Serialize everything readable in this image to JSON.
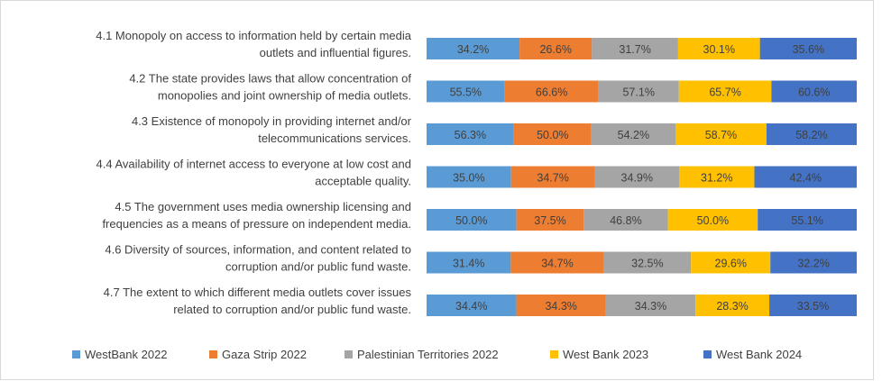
{
  "chart_data": {
    "type": "bar",
    "orientation": "horizontal",
    "stacked": true,
    "categories": [
      [
        "4.1 Monopoly on access to information held by certain media",
        "outlets and influential figures."
      ],
      [
        "4.2 The state provides laws that allow concentration of",
        "monopolies and joint ownership of media outlets."
      ],
      [
        "4.3 Existence of monopoly in providing internet and/or",
        "telecommunications services."
      ],
      [
        "4.4 Availability of internet access to everyone at low cost and",
        "acceptable quality."
      ],
      [
        "4.5 The government uses media ownership licensing and",
        "frequencies as a means of pressure on independent media."
      ],
      [
        "4.6 Diversity of sources, information, and content related to",
        "corruption and/or public fund waste."
      ],
      [
        "4.7 The extent to which different media outlets cover issues",
        "related to corruption and/or public fund waste."
      ]
    ],
    "series": [
      {
        "name": "WestBank 2022",
        "color": "#5b9bd5",
        "values": [
          34.2,
          55.5,
          56.3,
          35.0,
          50.0,
          31.4,
          34.4
        ],
        "labels": [
          "34.2%",
          "55.5%",
          "56.3%",
          "35.0%",
          "50.0%",
          "31.4%",
          "34.4%"
        ]
      },
      {
        "name": "Gaza Strip 2022",
        "color": "#ed7d31",
        "values": [
          26.6,
          66.6,
          50.0,
          34.7,
          37.5,
          34.7,
          34.3
        ],
        "labels": [
          "26.6%",
          "66.6%",
          "50.0%",
          "34.7%",
          "37.5%",
          "34.7%",
          "34.3%"
        ]
      },
      {
        "name": "Palestinian Territories 2022",
        "color": "#a5a5a5",
        "values": [
          31.7,
          57.1,
          54.2,
          34.9,
          46.8,
          32.5,
          34.3
        ],
        "labels": [
          "31.7%",
          "57.1%",
          "54.2%",
          "34.9%",
          "46.8%",
          "32.5%",
          "34.3%"
        ]
      },
      {
        "name": "West Bank 2023",
        "color": "#ffc000",
        "values": [
          30.1,
          65.7,
          58.7,
          31.2,
          50.0,
          29.6,
          28.3
        ],
        "labels": [
          "30.1%",
          "65.7%",
          "58.7%",
          "31.2%",
          "50.0%",
          "29.6%",
          "28.3%"
        ]
      },
      {
        "name": "West Bank 2024",
        "color": "#4472c4",
        "values": [
          35.6,
          60.6,
          58.2,
          42.4,
          55.1,
          32.2,
          33.5
        ],
        "labels": [
          "35.6%",
          "60.6%",
          "58.2%",
          "42.4%",
          "55.1%",
          "32.2%",
          "33.5%"
        ]
      }
    ],
    "title": "",
    "xlabel": "",
    "ylabel": "",
    "gridlines": false,
    "legend_position": "bottom"
  }
}
